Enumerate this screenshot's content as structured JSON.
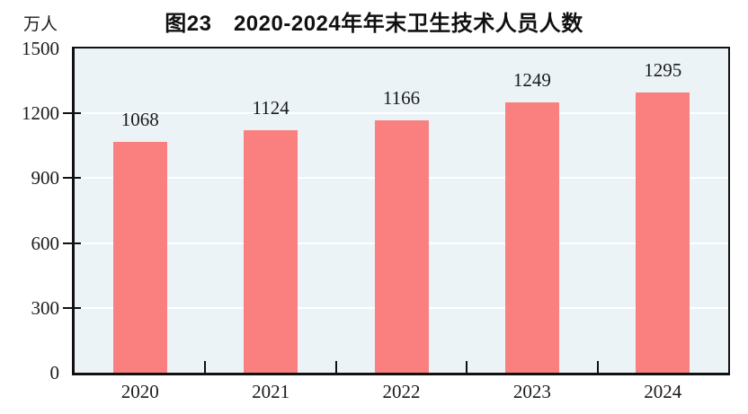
{
  "chart_data": {
    "type": "bar",
    "title": "图23　2020-2024年年末卫生技术人员人数",
    "unit_label": "万人",
    "categories": [
      "2020",
      "2021",
      "2022",
      "2023",
      "2024"
    ],
    "values": [
      1068,
      1124,
      1166,
      1249,
      1295
    ],
    "ylim": [
      0,
      1500
    ],
    "yticks": [
      0,
      300,
      600,
      900,
      1200,
      1500
    ],
    "grid": true,
    "legend_position": "none",
    "colors": {
      "bar": "#FA8080",
      "plot_background": "#EBF3F7",
      "gridline": "#FFFFFF",
      "axis": "#111111",
      "text": "#1A1A1A"
    }
  }
}
